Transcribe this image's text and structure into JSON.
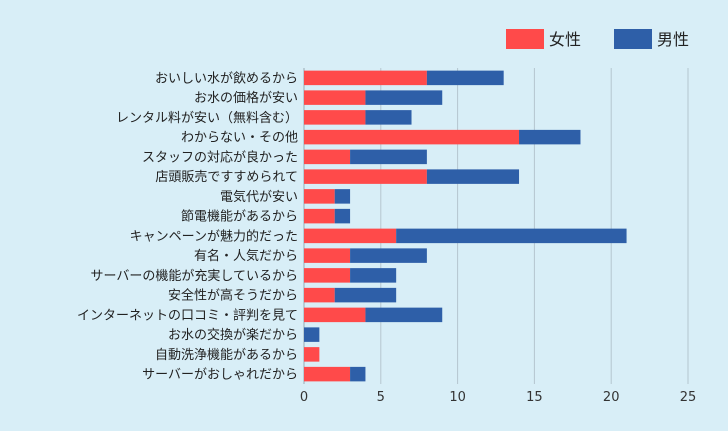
{
  "chart_data": {
    "type": "bar",
    "orientation": "horizontal",
    "stacked": true,
    "categories": [
      "おいしい水が飲めるから",
      "お水の価格が安い",
      "レンタル料が安い（無料含む）",
      "わからない・その他",
      "スタッフの対応が良かった",
      "店頭販売ですすめられて",
      "電気代が安い",
      "節電機能があるから",
      "キャンペーンが魅力的だった",
      "有名・人気だから",
      "サーバーの機能が充実しているから",
      "安全性が高そうだから",
      "インターネットの口コミ・評判を見て",
      "お水の交換が楽だから",
      "自動洗浄機能があるから",
      "サーバーがおしゃれだから"
    ],
    "series": [
      {
        "name": "女性",
        "color": "#ff4a4a",
        "values": [
          8,
          4,
          4,
          14,
          3,
          8,
          2,
          2,
          6,
          3,
          3,
          2,
          4,
          0,
          1,
          3
        ]
      },
      {
        "name": "男性",
        "color": "#2e5fa8",
        "values": [
          5,
          5,
          3,
          4,
          5,
          6,
          1,
          1,
          15,
          5,
          3,
          4,
          5,
          1,
          0,
          1
        ]
      }
    ],
    "xlim": [
      0,
      25
    ],
    "xticks": [
      "0",
      "5",
      "10",
      "15",
      "20",
      "25"
    ],
    "grid": true,
    "legend_position": "top-right"
  }
}
